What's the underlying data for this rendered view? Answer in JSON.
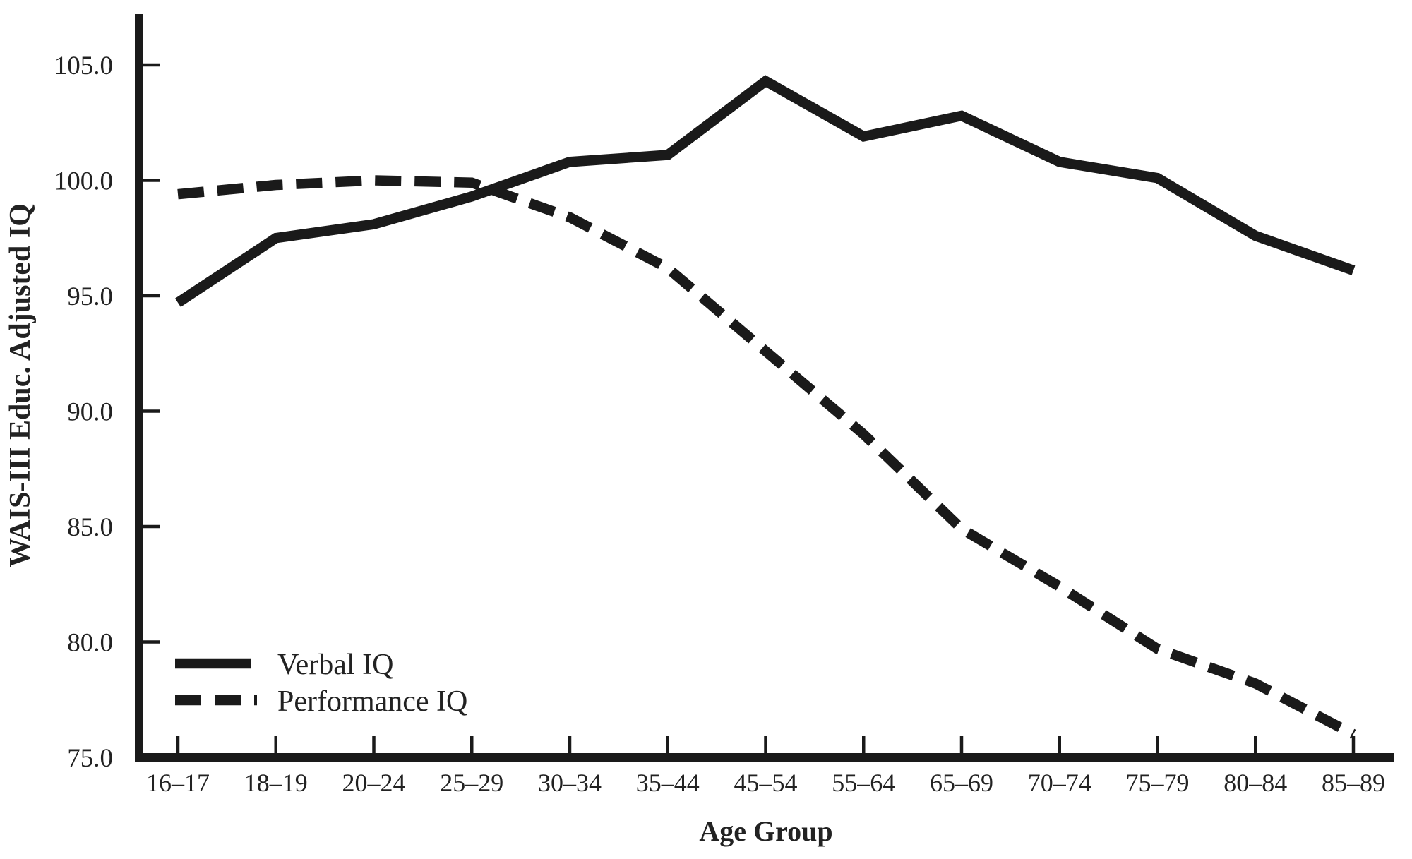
{
  "figure": {
    "background": "#ffffff",
    "ink_color": "#1a1a1a",
    "text_color": "#222222"
  },
  "chart_data": {
    "type": "line",
    "title": "",
    "xlabel": "Age Group",
    "ylabel": "WAIS-III Educ. Adjusted IQ",
    "categories": [
      "16–17",
      "18–19",
      "20–24",
      "25–29",
      "30–34",
      "35–44",
      "45–54",
      "55–64",
      "65–69",
      "70–74",
      "75–79",
      "80–84",
      "85–89"
    ],
    "series": [
      {
        "name": "Verbal IQ",
        "style": "solid",
        "values": [
          94.7,
          97.5,
          98.1,
          99.3,
          100.8,
          101.1,
          104.3,
          101.9,
          102.8,
          100.8,
          100.1,
          97.6,
          96.1
        ]
      },
      {
        "name": "Performance IQ",
        "style": "dashed",
        "values": [
          99.4,
          99.8,
          100.0,
          99.9,
          98.4,
          96.2,
          92.6,
          89.0,
          84.9,
          82.4,
          79.7,
          78.2,
          76.0
        ]
      }
    ],
    "y_ticks": [
      105.0,
      100.0,
      95.0,
      90.0,
      85.0,
      80.0,
      75.0
    ],
    "y_tick_labels": [
      "105.0",
      "100.0",
      "95.0",
      "90.0",
      "85.0",
      "80.0",
      "75.0"
    ],
    "ylim": [
      75.0,
      107.2
    ],
    "grid": false,
    "legend_position": "lower-left",
    "line_color": "#1a1a1a"
  }
}
